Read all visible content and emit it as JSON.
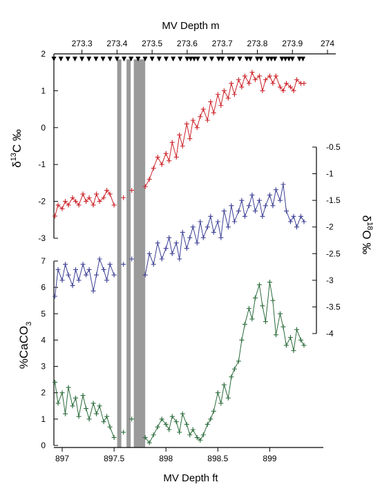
{
  "chart_data": {
    "type": "line",
    "top_axis": {
      "title": "MV Depth m",
      "ticks": [
        "273.3",
        "273.4",
        "273.5",
        "273.6",
        "273.7",
        "273.8",
        "273.9",
        "274"
      ],
      "tick_values": [
        273.3,
        273.4,
        273.5,
        273.6,
        273.7,
        273.8,
        273.9,
        274.0
      ],
      "range": [
        273.22,
        274.0
      ]
    },
    "bottom_axis": {
      "title": "MV Depth ft",
      "ticks": [
        "897",
        "897.5",
        "898",
        "898.5",
        "899"
      ],
      "tick_values": [
        897,
        897.5,
        898,
        898.5,
        899
      ],
      "range": [
        896.92,
        899.45
      ]
    },
    "gaps_ft": [
      [
        897.53,
        897.57
      ],
      [
        897.62,
        897.66
      ],
      [
        897.69,
        897.8
      ]
    ],
    "sample_markers_m": [
      273.22,
      273.24,
      273.26,
      273.28,
      273.3,
      273.32,
      273.34,
      273.36,
      273.38,
      273.4,
      273.42,
      273.44,
      273.46,
      273.48,
      273.5,
      273.52,
      273.54,
      273.56,
      273.58,
      273.6,
      273.61,
      273.62,
      273.63,
      273.65,
      273.67,
      273.69,
      273.7,
      273.72,
      273.73,
      273.75,
      273.77,
      273.78,
      273.8,
      273.81,
      273.83,
      273.84,
      273.85,
      273.87,
      273.88,
      273.89,
      273.9,
      273.92,
      273.93
    ],
    "panels": [
      {
        "name": "d13C",
        "ylabel_prefix": "δ",
        "ylabel_sup": "13",
        "ylabel_suffix": "C ‰",
        "ylim": [
          -3,
          2
        ],
        "ticks": [
          "-3",
          "-2",
          "-1",
          "0",
          "1",
          "2"
        ],
        "tick_values": [
          -3,
          -2,
          -1,
          0,
          1,
          2
        ],
        "color": "#cc2229",
        "x": [
          896.93,
          896.96,
          897.0,
          897.03,
          897.06,
          897.1,
          897.13,
          897.16,
          897.2,
          897.23,
          897.26,
          897.3,
          897.33,
          897.36,
          897.4,
          897.43,
          897.46,
          897.5,
          897.59,
          897.67,
          897.8,
          897.84,
          897.88,
          897.92,
          897.96,
          898.0,
          898.03,
          898.06,
          898.1,
          898.13,
          898.16,
          898.2,
          898.23,
          898.26,
          898.3,
          898.33,
          898.36,
          898.4,
          898.43,
          898.46,
          898.5,
          898.53,
          898.56,
          898.6,
          898.63,
          898.66,
          898.7,
          898.73,
          898.76,
          898.8,
          898.83,
          898.86,
          898.9,
          898.93,
          898.96,
          899.0,
          899.03,
          899.06,
          899.1,
          899.13,
          899.16,
          899.2,
          899.23,
          899.26,
          899.3,
          899.33
        ],
        "y": [
          -2.4,
          -2.1,
          -2.2,
          -2.0,
          -2.1,
          -1.9,
          -2.0,
          -2.1,
          -1.8,
          -2.0,
          -1.9,
          -2.1,
          -1.8,
          -2.0,
          -1.9,
          -1.7,
          -1.8,
          -2.1,
          -1.9,
          -1.7,
          -1.6,
          -1.4,
          -1.1,
          -0.8,
          -1.0,
          -0.7,
          -0.9,
          -0.4,
          -0.8,
          -0.2,
          -0.5,
          0.1,
          -0.3,
          0.2,
          0.0,
          0.3,
          0.5,
          0.2,
          0.7,
          0.4,
          0.9,
          0.6,
          1.0,
          0.8,
          1.2,
          0.9,
          1.3,
          1.1,
          1.4,
          1.2,
          1.5,
          1.3,
          1.4,
          1.0,
          1.3,
          1.4,
          1.2,
          1.4,
          1.1,
          1.0,
          1.2,
          1.1,
          1.0,
          1.3,
          1.2,
          1.2
        ]
      },
      {
        "name": "d18O",
        "ylabel_prefix": "δ",
        "ylabel_sup": "18",
        "ylabel_suffix": "O ‰",
        "ylim": [
          -4,
          -0.5
        ],
        "ticks": [
          "-0.5",
          "-1",
          "-1.5",
          "-2",
          "-2.5",
          "-3",
          "-3.5",
          "-4"
        ],
        "tick_values": [
          -0.5,
          -1,
          -1.5,
          -2,
          -2.5,
          -3,
          -3.5,
          -4
        ],
        "color": "#3b3f94",
        "x": [
          896.93,
          896.96,
          897.0,
          897.03,
          897.06,
          897.1,
          897.13,
          897.16,
          897.2,
          897.23,
          897.26,
          897.3,
          897.33,
          897.36,
          897.4,
          897.43,
          897.46,
          897.5,
          897.59,
          897.67,
          897.8,
          897.84,
          897.88,
          897.92,
          897.96,
          898.0,
          898.03,
          898.06,
          898.1,
          898.13,
          898.16,
          898.2,
          898.23,
          898.26,
          898.3,
          898.33,
          898.36,
          898.4,
          898.43,
          898.46,
          898.5,
          898.53,
          898.56,
          898.6,
          898.63,
          898.66,
          898.7,
          898.73,
          898.76,
          898.8,
          898.83,
          898.86,
          898.9,
          898.93,
          898.96,
          899.0,
          899.03,
          899.06,
          899.1,
          899.13,
          899.16,
          899.2,
          899.23,
          899.26,
          899.3,
          899.33
        ],
        "y": [
          -3.3,
          -2.8,
          -3.0,
          -2.7,
          -2.9,
          -3.1,
          -2.8,
          -3.0,
          -2.7,
          -2.9,
          -2.8,
          -3.2,
          -2.9,
          -2.6,
          -2.8,
          -3.0,
          -2.7,
          -2.9,
          -2.7,
          -2.6,
          -2.9,
          -2.5,
          -2.7,
          -2.3,
          -2.6,
          -2.4,
          -2.2,
          -2.5,
          -2.3,
          -2.6,
          -2.1,
          -2.4,
          -2.2,
          -2.0,
          -2.3,
          -1.9,
          -2.2,
          -2.0,
          -1.8,
          -2.1,
          -1.9,
          -2.2,
          -1.7,
          -2.0,
          -1.6,
          -1.9,
          -1.7,
          -1.5,
          -1.8,
          -1.6,
          -1.4,
          -1.7,
          -1.5,
          -1.8,
          -1.6,
          -1.4,
          -1.6,
          -1.3,
          -1.5,
          -1.2,
          -1.7,
          -1.9,
          -1.8,
          -2.0,
          -1.8,
          -1.9
        ]
      },
      {
        "name": "CaCO3",
        "ylabel": "%CaCO",
        "ylabel_sub": "3",
        "ylim": [
          0,
          7
        ],
        "ticks": [
          "0",
          "1",
          "2",
          "3",
          "4",
          "5",
          "6",
          "7"
        ],
        "tick_values": [
          0,
          1,
          2,
          3,
          4,
          5,
          6,
          7
        ],
        "color": "#2a6b3a",
        "x": [
          896.93,
          896.96,
          897.0,
          897.03,
          897.06,
          897.1,
          897.13,
          897.16,
          897.2,
          897.23,
          897.26,
          897.3,
          897.33,
          897.36,
          897.4,
          897.43,
          897.46,
          897.5,
          897.59,
          897.67,
          897.8,
          897.84,
          897.88,
          897.92,
          897.96,
          898.0,
          898.03,
          898.06,
          898.1,
          898.13,
          898.16,
          898.2,
          898.23,
          898.26,
          898.3,
          898.33,
          898.36,
          898.4,
          898.43,
          898.46,
          898.5,
          898.53,
          898.56,
          898.6,
          898.63,
          898.66,
          898.7,
          898.73,
          898.76,
          898.8,
          898.83,
          898.86,
          898.9,
          898.93,
          898.96,
          899.0,
          899.03,
          899.06,
          899.1,
          899.13,
          899.16,
          899.2,
          899.23,
          899.26,
          899.3,
          899.33
        ],
        "y": [
          2.4,
          1.6,
          2.0,
          1.2,
          2.2,
          1.5,
          1.8,
          1.1,
          1.9,
          1.4,
          1.0,
          1.6,
          1.2,
          1.5,
          0.9,
          1.1,
          0.7,
          0.3,
          0.5,
          1.0,
          0.3,
          0.1,
          0.4,
          0.7,
          1.0,
          0.8,
          0.6,
          1.1,
          0.9,
          0.5,
          1.2,
          0.8,
          0.4,
          0.6,
          0.3,
          0.2,
          0.4,
          0.8,
          1.0,
          1.3,
          2.0,
          1.6,
          2.3,
          1.8,
          2.6,
          2.9,
          3.2,
          4.0,
          4.6,
          5.2,
          4.8,
          5.6,
          6.1,
          5.3,
          4.7,
          6.2,
          5.5,
          4.2,
          5.0,
          4.5,
          3.8,
          4.1,
          3.6,
          4.4,
          4.0,
          3.8
        ]
      }
    ]
  }
}
